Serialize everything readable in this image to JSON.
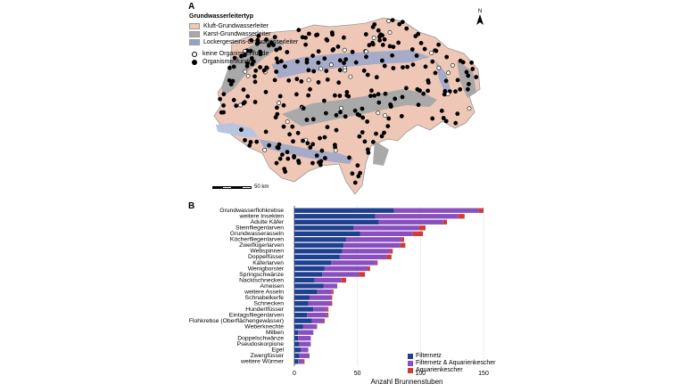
{
  "panel_a": {
    "label": "A",
    "legend": {
      "title": "Grundwasserleitertyp",
      "aquifer_types": [
        {
          "label": "Kluft-Grundwasserleiter",
          "color": "#efc7b6"
        },
        {
          "label": "Karst-Grundwasserleiter",
          "color": "#a9a9a9"
        },
        {
          "label": "Lockergesteins-Grundwasserleiter",
          "color": "#93a4cc"
        }
      ],
      "findings": [
        {
          "label": "keine Organismenfunde",
          "filled": false
        },
        {
          "label": "Organismenfunde",
          "filled": true
        }
      ]
    },
    "scale_label": "50 km",
    "north_label": "N"
  },
  "panel_b": {
    "label": "B",
    "legend": [
      {
        "label": "Filternetz",
        "color": "#1f3f8f"
      },
      {
        "label": "Filternetz & Aquarienkescher",
        "color": "#8a4fbf"
      },
      {
        "label": "Aquarienkescher",
        "color": "#d23a35"
      }
    ]
  },
  "chart_data": {
    "type": "bar",
    "orientation": "horizontal",
    "stacked": true,
    "categories": [
      "Grundwasserflohkrebse",
      "weitere Insekten",
      "Adulte Käfer",
      "Steinfliegenlarven",
      "Grundwasserasseln",
      "Köcherfliegenlarven",
      "Zweiflügerlarven",
      "Webspinnen",
      "Doppelfüsser",
      "Käferlarven",
      "Wenigborster",
      "Springschwänze",
      "Nacktschnecken",
      "Ameisen",
      "weitere Asseln",
      "Schnabelkerfe",
      "Schnecken",
      "Hundertfüsser",
      "Eintagsfliegenlarven",
      "Flohkrebse (Oberflächengewässer)",
      "Weberknechte",
      "Milben",
      "Doppelschwänze",
      "Pseudoskorpione",
      "Egel",
      "Zwergfüsser",
      "weitere Würmer"
    ],
    "series": [
      {
        "name": "Filternetz",
        "values": [
          79,
          64,
          67,
          47,
          52,
          41,
          39,
          38,
          36,
          29,
          24,
          22,
          16,
          23,
          18,
          12,
          11,
          15,
          10,
          14,
          7,
          3,
          3,
          4,
          5,
          4,
          3
        ]
      },
      {
        "name": "Filternetz & Aquarienkescher",
        "values": [
          67,
          66,
          51,
          52,
          42,
          44,
          45,
          38,
          37,
          36,
          34,
          29,
          21,
          11,
          12,
          17,
          18,
          11,
          16,
          9,
          11,
          12,
          10,
          9,
          6,
          8,
          4
        ]
      },
      {
        "name": "Aquarienkescher",
        "values": [
          4,
          5,
          3,
          5,
          8,
          2,
          4,
          2,
          4,
          1,
          2,
          5,
          4,
          0,
          1,
          1,
          1,
          1,
          1,
          1,
          0,
          0,
          0,
          0,
          0,
          0,
          1
        ]
      }
    ],
    "xlabel": "Anzahl Brunnenstuben",
    "xlim": [
      0,
      150
    ],
    "xticks": [
      0,
      50,
      100,
      150
    ],
    "grid": true,
    "legend_position": "bottom-right"
  }
}
